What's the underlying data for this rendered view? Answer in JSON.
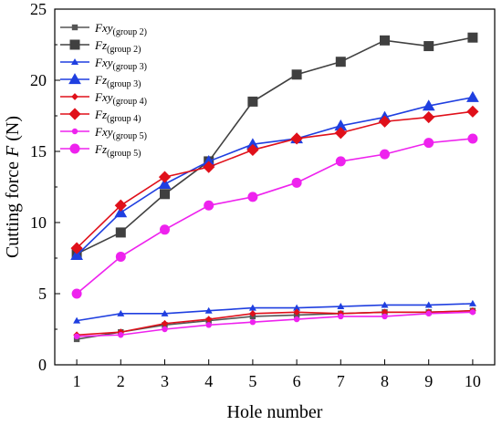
{
  "chart_data": {
    "type": "line",
    "xlabel": "Hole number",
    "ylabel_main": "Cutting force ",
    "ylabel_var": "F",
    "ylabel_unit": " (N)",
    "xlim": [
      0.5,
      10.5
    ],
    "ylim": [
      0,
      25
    ],
    "xticks": [
      "1",
      "2",
      "3",
      "4",
      "5",
      "6",
      "7",
      "8",
      "9",
      "10"
    ],
    "yticks": [
      "0",
      "5",
      "10",
      "15",
      "20",
      "25"
    ],
    "grid": false,
    "legend_position": "top-left",
    "x": [
      1,
      2,
      3,
      4,
      5,
      6,
      7,
      8,
      9,
      10
    ],
    "series": [
      {
        "var": "Fxy",
        "sub": "(group 2)",
        "color": "#555555",
        "marker": "square-small",
        "values": [
          1.8,
          2.3,
          2.8,
          3.1,
          3.4,
          3.5,
          3.6,
          3.7,
          3.7,
          3.8
        ]
      },
      {
        "var": "Fz",
        "sub": "(group 2)",
        "color": "#404040",
        "marker": "square",
        "values": [
          7.8,
          9.3,
          12.0,
          14.3,
          18.5,
          20.4,
          21.3,
          22.8,
          22.4,
          23.0
        ]
      },
      {
        "var": "Fxy",
        "sub": "(group 3)",
        "color": "#1f3fe0",
        "marker": "triangle-small",
        "values": [
          3.1,
          3.6,
          3.6,
          3.8,
          4.0,
          4.0,
          4.1,
          4.2,
          4.2,
          4.3
        ]
      },
      {
        "var": "Fz",
        "sub": "(group 3)",
        "color": "#1f3fe0",
        "marker": "triangle",
        "values": [
          7.7,
          10.7,
          12.7,
          14.3,
          15.5,
          15.9,
          16.8,
          17.4,
          18.2,
          18.8
        ]
      },
      {
        "var": "Fxy",
        "sub": "(group 4)",
        "color": "#e0101a",
        "marker": "diamond-small",
        "values": [
          2.1,
          2.3,
          2.9,
          3.2,
          3.6,
          3.7,
          3.6,
          3.7,
          3.7,
          3.8
        ]
      },
      {
        "var": "Fz",
        "sub": "(group 4)",
        "color": "#e0101a",
        "marker": "diamond",
        "values": [
          8.2,
          11.2,
          13.2,
          13.9,
          15.1,
          15.9,
          16.3,
          17.1,
          17.4,
          17.8
        ]
      },
      {
        "var": "Fxy",
        "sub": "(group 5)",
        "color": "#ee22ee",
        "marker": "circle-small",
        "values": [
          2.0,
          2.1,
          2.5,
          2.8,
          3.0,
          3.2,
          3.4,
          3.4,
          3.6,
          3.7
        ]
      },
      {
        "var": "Fz",
        "sub": "(group 5)",
        "color": "#ee22ee",
        "marker": "circle",
        "values": [
          5.0,
          7.6,
          9.5,
          11.2,
          11.8,
          12.8,
          14.3,
          14.8,
          15.6,
          15.9
        ]
      }
    ]
  }
}
